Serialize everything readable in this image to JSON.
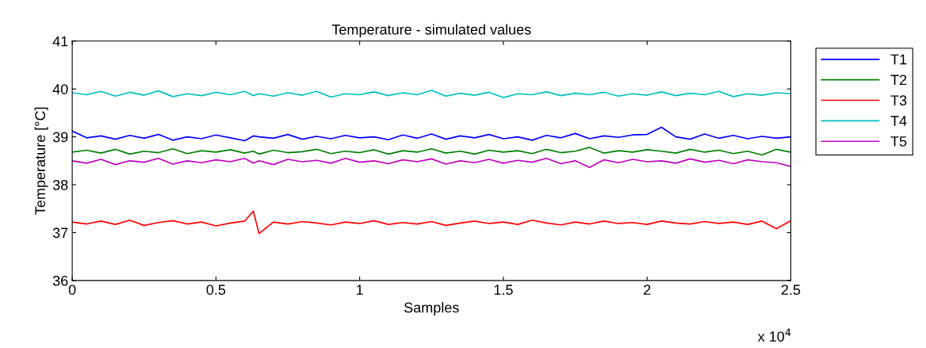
{
  "chart_data": {
    "type": "line",
    "title": "Temperature - simulated values",
    "xlabel": "Samples",
    "ylabel": "Temperature [°C]",
    "annotations": [
      "x 10$^{4}$"
    ],
    "x": [
      0,
      0.05,
      0.1,
      0.15,
      0.2,
      0.25,
      0.3,
      0.35,
      0.4,
      0.45,
      0.5,
      0.55,
      0.6,
      0.63,
      0.65,
      0.7,
      0.75,
      0.8,
      0.85,
      0.9,
      0.95,
      1.0,
      1.05,
      1.1,
      1.15,
      1.2,
      1.25,
      1.3,
      1.35,
      1.4,
      1.45,
      1.5,
      1.55,
      1.6,
      1.65,
      1.7,
      1.75,
      1.8,
      1.85,
      1.9,
      1.95,
      2.0,
      2.05,
      2.1,
      2.15,
      2.2,
      2.25,
      2.3,
      2.35,
      2.4,
      2.45,
      2.5
    ],
    "series": [
      {
        "name": "T1",
        "color": "#0000ff",
        "values": [
          39.12,
          38.98,
          39.02,
          38.95,
          39.03,
          38.97,
          39.05,
          38.93,
          39.0,
          38.96,
          39.04,
          38.98,
          38.92,
          39.02,
          39.0,
          38.97,
          39.05,
          38.95,
          39.01,
          38.96,
          39.03,
          38.98,
          39.0,
          38.94,
          39.04,
          38.97,
          39.06,
          38.95,
          39.02,
          38.98,
          39.05,
          38.96,
          39.0,
          38.93,
          39.03,
          38.98,
          39.07,
          38.96,
          39.02,
          38.99,
          39.04,
          39.05,
          39.2,
          39.0,
          38.95,
          39.06,
          38.97,
          39.03,
          38.96,
          39.01,
          38.97,
          39.0
        ]
      },
      {
        "name": "T2",
        "color": "#008000",
        "values": [
          38.68,
          38.72,
          38.66,
          38.74,
          38.64,
          38.7,
          38.67,
          38.75,
          38.65,
          38.71,
          38.68,
          38.73,
          38.66,
          38.7,
          38.64,
          38.72,
          38.67,
          38.69,
          38.74,
          38.65,
          38.7,
          38.67,
          38.73,
          38.64,
          38.71,
          38.68,
          38.75,
          38.66,
          38.7,
          38.64,
          38.72,
          38.68,
          38.71,
          38.65,
          38.74,
          38.67,
          38.7,
          38.78,
          38.66,
          38.71,
          38.68,
          38.73,
          38.7,
          38.66,
          38.74,
          38.68,
          38.72,
          38.65,
          38.7,
          38.62,
          38.74,
          38.68
        ]
      },
      {
        "name": "T3",
        "color": "#ff0000",
        "values": [
          37.22,
          37.18,
          37.24,
          37.17,
          37.26,
          37.15,
          37.21,
          37.25,
          37.18,
          37.22,
          37.14,
          37.2,
          37.24,
          37.45,
          36.98,
          37.22,
          37.18,
          37.23,
          37.2,
          37.16,
          37.22,
          37.19,
          37.25,
          37.17,
          37.21,
          37.18,
          37.23,
          37.15,
          37.2,
          37.24,
          37.19,
          37.22,
          37.17,
          37.26,
          37.2,
          37.16,
          37.22,
          37.18,
          37.24,
          37.19,
          37.21,
          37.17,
          37.24,
          37.2,
          37.18,
          37.23,
          37.19,
          37.22,
          37.17,
          37.24,
          37.08,
          37.25
        ]
      },
      {
        "name": "T4",
        "color": "#00bfbf",
        "values": [
          39.92,
          39.88,
          39.95,
          39.85,
          39.93,
          39.87,
          39.96,
          39.84,
          39.9,
          39.86,
          39.93,
          39.88,
          39.95,
          39.86,
          39.9,
          39.85,
          39.92,
          39.87,
          39.95,
          39.83,
          39.9,
          39.88,
          39.94,
          39.86,
          39.92,
          39.88,
          39.97,
          39.85,
          39.91,
          39.87,
          39.93,
          39.82,
          39.9,
          39.88,
          39.94,
          39.86,
          39.91,
          39.88,
          39.93,
          39.85,
          39.9,
          39.87,
          39.94,
          39.86,
          39.91,
          39.88,
          39.95,
          39.84,
          39.9,
          39.87,
          39.92,
          39.9
        ]
      },
      {
        "name": "T5",
        "color": "#bf00bf",
        "values": [
          38.5,
          38.45,
          38.53,
          38.42,
          38.5,
          38.47,
          38.55,
          38.43,
          38.5,
          38.46,
          38.52,
          38.48,
          38.55,
          38.45,
          38.5,
          38.42,
          38.53,
          38.48,
          38.51,
          38.45,
          38.55,
          38.47,
          38.5,
          38.44,
          38.52,
          38.48,
          38.54,
          38.43,
          38.5,
          38.46,
          38.53,
          38.45,
          38.51,
          38.47,
          38.55,
          38.44,
          38.5,
          38.36,
          38.52,
          38.46,
          38.53,
          38.48,
          38.5,
          38.45,
          38.54,
          38.47,
          38.51,
          38.44,
          38.52,
          38.48,
          38.46,
          38.38
        ]
      }
    ],
    "xlim": [
      0,
      2.5
    ],
    "xticks": [
      0,
      0.5,
      1,
      1.5,
      2,
      2.5
    ],
    "ylim": [
      36,
      41
    ],
    "yticks": [
      36,
      37,
      38,
      39,
      40,
      41
    ],
    "legend": "top right"
  }
}
